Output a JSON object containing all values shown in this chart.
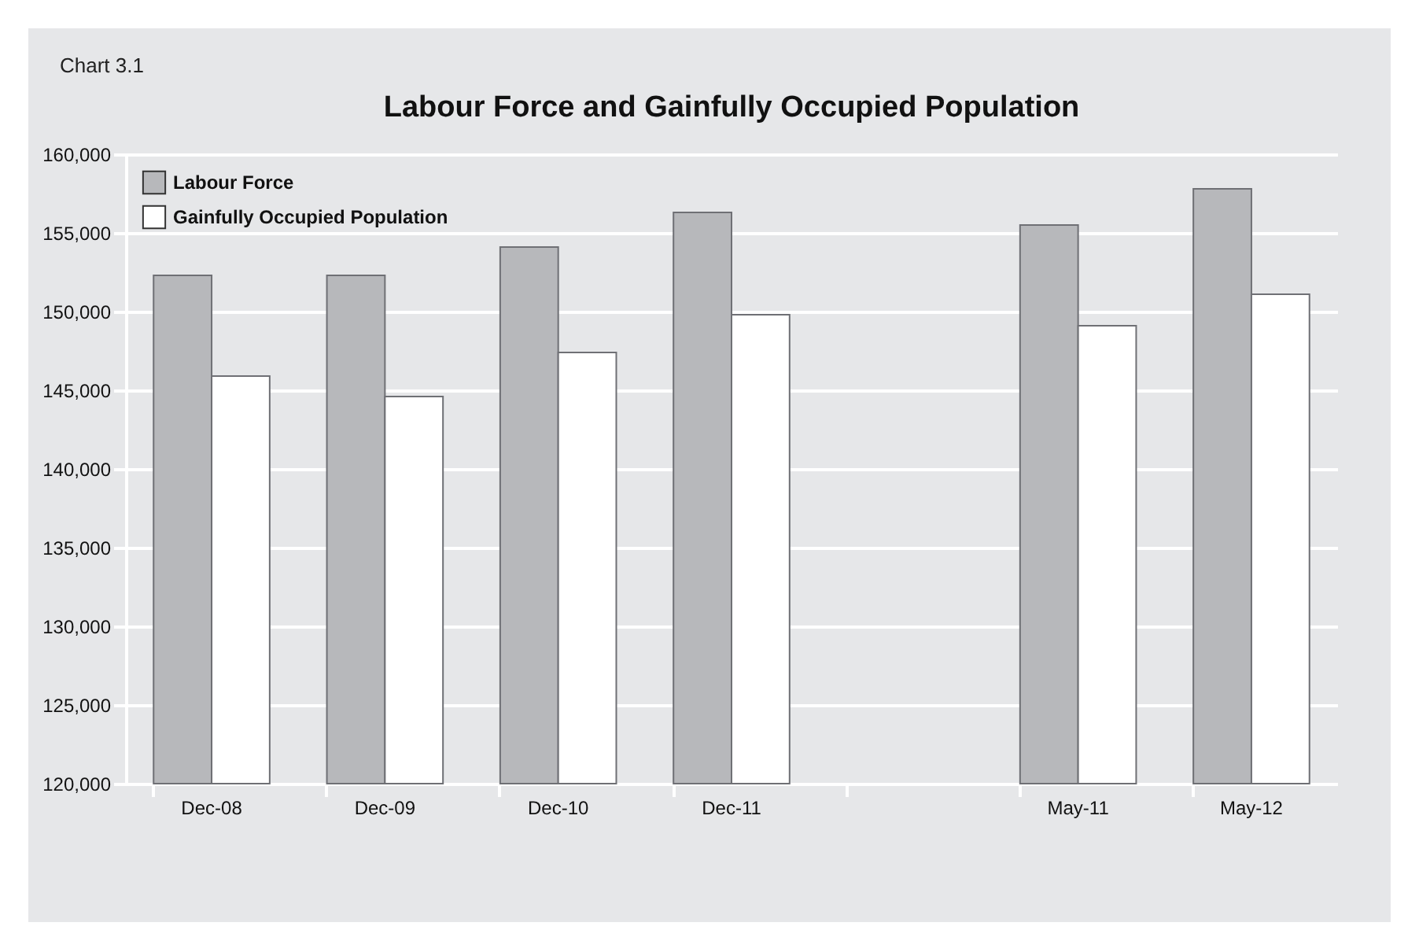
{
  "chart_data": {
    "type": "bar",
    "title": "Labour Force and Gainfully Occupied Population",
    "annotations": [
      "Chart 3.1"
    ],
    "categories": [
      "Dec-08",
      "Dec-09",
      "Dec-10",
      "Dec-11",
      null,
      "May-11",
      "May-12"
    ],
    "series": [
      {
        "name": "Labour Force",
        "color": "#b7b8bb",
        "values": [
          152300,
          152300,
          154100,
          156300,
          null,
          155500,
          157800
        ]
      },
      {
        "name": "Gainfully Occupied Population",
        "color": "#ffffff",
        "values": [
          145900,
          144600,
          147400,
          149800,
          null,
          149100,
          151100
        ]
      }
    ],
    "ylim": [
      120000,
      160000
    ],
    "yticks": [
      {
        "value": 120000,
        "label": "120,000"
      },
      {
        "value": 125000,
        "label": "125,000"
      },
      {
        "value": 130000,
        "label": "130,000"
      },
      {
        "value": 135000,
        "label": "135,000"
      },
      {
        "value": 140000,
        "label": "140,000"
      },
      {
        "value": 145000,
        "label": "145,000"
      },
      {
        "value": 150000,
        "label": "150,000"
      },
      {
        "value": 155000,
        "label": "155,000"
      },
      {
        "value": 160000,
        "label": "160,000"
      }
    ],
    "grid": "y",
    "legend": "top left"
  }
}
